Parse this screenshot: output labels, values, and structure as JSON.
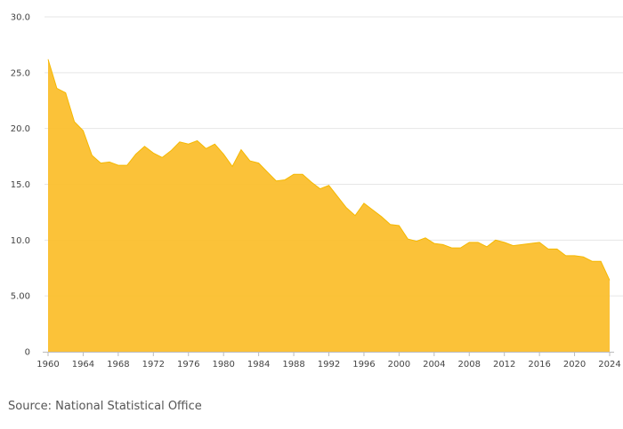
{
  "colors": {
    "area_fill": "#fbbf2e",
    "area_line": "#f5b800",
    "grid": "#e6e6e6",
    "axis": "#bbbbbb"
  },
  "source": "Source: National Statistical Office",
  "chart_data": {
    "type": "area",
    "title": "",
    "xlabel": "",
    "ylabel": "",
    "grid": true,
    "xlim": [
      1960,
      2024
    ],
    "ylim": [
      0,
      30
    ],
    "x_ticks": [
      1960,
      1964,
      1968,
      1972,
      1976,
      1980,
      1984,
      1988,
      1992,
      1996,
      2000,
      2004,
      2008,
      2012,
      2016,
      2020,
      2024
    ],
    "y_ticks": [
      0,
      5,
      10,
      15,
      20,
      25,
      30
    ],
    "y_tick_labels": [
      "0",
      "5.00",
      "10.0",
      "15.0",
      "20.0",
      "25.0",
      "30.0"
    ],
    "series": [
      {
        "x": [
          1960,
          1961,
          1962,
          1963,
          1964,
          1965,
          1966,
          1967,
          1968,
          1969,
          1970,
          1971,
          1972,
          1973,
          1974,
          1975,
          1976,
          1977,
          1978,
          1979,
          1980,
          1981,
          1982,
          1983,
          1984,
          1985,
          1986,
          1987,
          1988,
          1989,
          1990,
          1991,
          1992,
          1993,
          1994,
          1995,
          1996,
          1997,
          1998,
          1999,
          2000,
          2001,
          2002,
          2003,
          2004,
          2005,
          2006,
          2007,
          2008,
          2009,
          2010,
          2011,
          2012,
          2013,
          2014,
          2015,
          2016,
          2017,
          2018,
          2019,
          2020,
          2021,
          2022,
          2023,
          2024
        ],
        "values": [
          26.2,
          23.6,
          23.2,
          20.6,
          19.8,
          17.6,
          16.9,
          17.0,
          16.7,
          16.7,
          17.7,
          18.4,
          17.8,
          17.4,
          18.0,
          18.8,
          18.6,
          18.9,
          18.2,
          18.6,
          17.7,
          16.6,
          18.1,
          17.1,
          16.9,
          16.1,
          15.3,
          15.4,
          15.9,
          15.9,
          15.2,
          14.6,
          14.9,
          13.9,
          12.9,
          12.2,
          13.3,
          12.7,
          12.1,
          11.4,
          11.3,
          10.1,
          9.9,
          10.2,
          9.7,
          9.6,
          9.3,
          9.3,
          9.8,
          9.8,
          9.4,
          10.0,
          9.8,
          9.5,
          9.6,
          9.7,
          9.8,
          9.2,
          9.2,
          8.6,
          8.6,
          8.5,
          8.1,
          8.1,
          6.4
        ]
      }
    ]
  }
}
